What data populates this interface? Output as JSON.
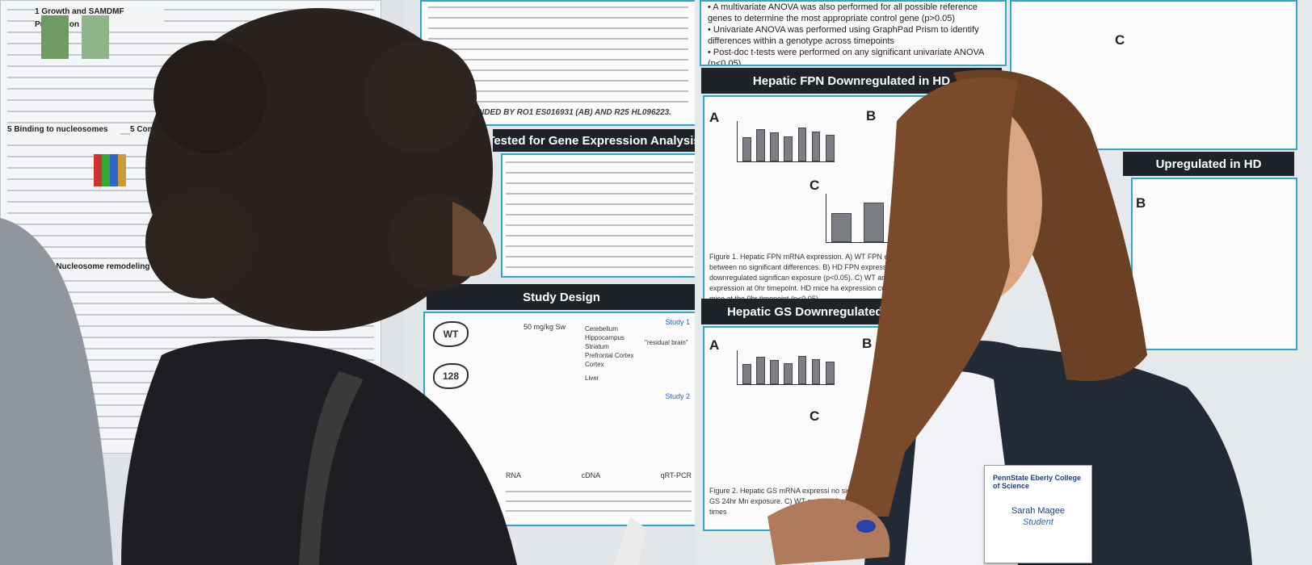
{
  "scene": {
    "description_colors": {
      "panel_border": "#2ea7c7",
      "header_bg": "#1f2329"
    }
  },
  "poster_center": {
    "header_gene_expression": "Tested for Gene Expression Analysis",
    "header_study_design": "Study Design",
    "funding": "NDED BY RO1 ES016931 (AB) AND R25 HL096223.",
    "study1": "Study 1",
    "study2": "Study 2",
    "wt": "WT",
    "q128": "128",
    "dose": "50 mg/kg Sw",
    "tissues": [
      "Cerebellum",
      "Hippocampus",
      "Striatum",
      "Prefrontal Cortex",
      "Cortex",
      "Liver"
    ],
    "residual": "\"residual brain\"",
    "flow": [
      "RNA",
      "cDNA",
      "qRT-PCR"
    ]
  },
  "poster_right": {
    "header_fpn": "Hepatic FPN Downregulated in HD",
    "header_gs": "Hepatic GS Downregulated in HD",
    "header_upreg": "Upregulated in HD",
    "bullets": [
      "A multivariate ANOVA was also performed for all possible reference genes to determine the most appropriate control gene (p>0.05)",
      "Univariate ANOVA was performed using GraphPad Prism to identify differences within a genotype across timepoints",
      "Post-doc t-tests were performed on any significant univariate ANOVA (p<0.05)"
    ],
    "fig_labels": {
      "a": "A",
      "b": "B",
      "c": "C"
    },
    "figure1": "Figure 1. Hepatic FPN mRNA expression. A) WT FPN expression levels between no significant differences. B) HD FPN expression levels downregulated significan exposure (p<0.05). C) WT and HD FPN expression at 0hr timepoint. HD mice ha expression compared to WT mice at the 0hr timepoint (p<0.05).",
    "figure2": "Figure 2. Hepatic GS mRNA expressi no significant differences. B) HD GS 24hr Mn exposure. C) WT and HD G expression of GS at the 0 hour times"
  },
  "poster_left": {
    "items": [
      "1 Growth and SAMDMF Purification",
      "5 Binding to nucleosomes",
      "5 Compromised",
      "5 Nucleosome remodeling assay"
    ]
  },
  "badge": {
    "org": "PennState Eberly College of Science",
    "name": "Sarah Magee",
    "role": "Student"
  }
}
